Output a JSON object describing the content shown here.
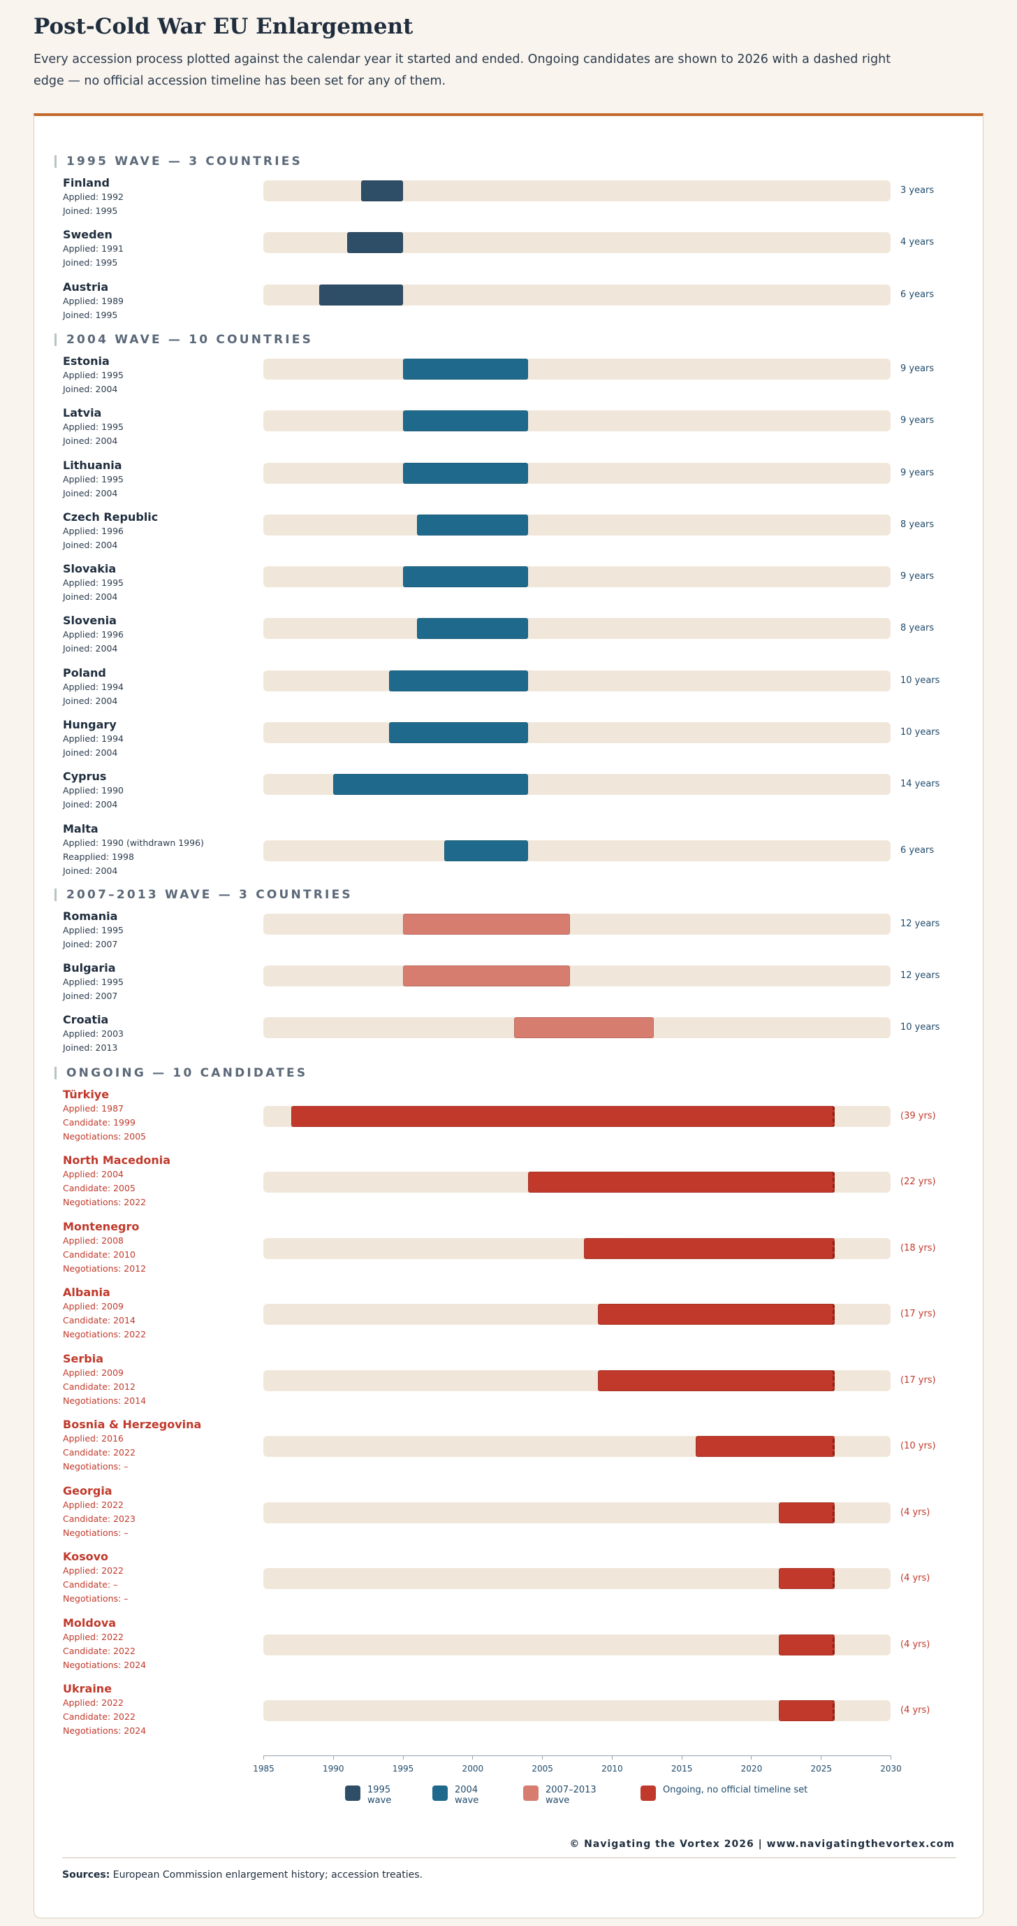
{
  "header": {
    "title": "Post-Cold War EU Enlargement",
    "subtitle": "Every accession process plotted against the calendar year it started and ended. Ongoing candidates are shown to 2026 with a dashed right edge — no official accession timeline has been set for any of them."
  },
  "colors": {
    "wave1995": "#2e4d66",
    "wave2004": "#1f6a8c",
    "wave2007": "#d67d70",
    "ongoing": "#c0392b",
    "track": "#f0e7da",
    "accent_rule": "#c26a2b"
  },
  "chart_data": {
    "type": "bar",
    "xlim": [
      1985,
      2030
    ],
    "x_ticks": [
      "1985",
      "1990",
      "1995",
      "2000",
      "2005",
      "2010",
      "2015",
      "2020",
      "2025",
      "2030"
    ],
    "groups": [
      {
        "heading": "1995 WAVE — 3 COUNTRIES",
        "key": "wave1995",
        "items": [
          {
            "name": "Finland",
            "start": 1992,
            "end": 1995,
            "details": [
              "Applied: 1992",
              "Joined: 1995"
            ],
            "duration": "3 years"
          },
          {
            "name": "Sweden",
            "start": 1991,
            "end": 1995,
            "details": [
              "Applied: 1991",
              "Joined: 1995"
            ],
            "duration": "4 years"
          },
          {
            "name": "Austria",
            "start": 1989,
            "end": 1995,
            "details": [
              "Applied: 1989",
              "Joined: 1995"
            ],
            "duration": "6 years"
          }
        ]
      },
      {
        "heading": "2004 WAVE — 10 COUNTRIES",
        "key": "wave2004",
        "items": [
          {
            "name": "Estonia",
            "start": 1995,
            "end": 2004,
            "details": [
              "Applied: 1995",
              "Joined: 2004"
            ],
            "duration": "9 years"
          },
          {
            "name": "Latvia",
            "start": 1995,
            "end": 2004,
            "details": [
              "Applied: 1995",
              "Joined: 2004"
            ],
            "duration": "9 years"
          },
          {
            "name": "Lithuania",
            "start": 1995,
            "end": 2004,
            "details": [
              "Applied: 1995",
              "Joined: 2004"
            ],
            "duration": "9 years"
          },
          {
            "name": "Czech Republic",
            "start": 1996,
            "end": 2004,
            "details": [
              "Applied: 1996",
              "Joined: 2004"
            ],
            "duration": "8 years"
          },
          {
            "name": "Slovakia",
            "start": 1995,
            "end": 2004,
            "details": [
              "Applied: 1995",
              "Joined: 2004"
            ],
            "duration": "9 years"
          },
          {
            "name": "Slovenia",
            "start": 1996,
            "end": 2004,
            "details": [
              "Applied: 1996",
              "Joined: 2004"
            ],
            "duration": "8 years"
          },
          {
            "name": "Poland",
            "start": 1994,
            "end": 2004,
            "details": [
              "Applied: 1994",
              "Joined: 2004"
            ],
            "duration": "10 years"
          },
          {
            "name": "Hungary",
            "start": 1994,
            "end": 2004,
            "details": [
              "Applied: 1994",
              "Joined: 2004"
            ],
            "duration": "10 years"
          },
          {
            "name": "Cyprus",
            "start": 1990,
            "end": 2004,
            "details": [
              "Applied: 1990",
              "Joined: 2004"
            ],
            "duration": "14 years"
          },
          {
            "name": "Malta",
            "start": 1998,
            "end": 2004,
            "details": [
              "Applied: 1990 (withdrawn 1996)",
              "Reapplied: 1998",
              "Joined: 2004"
            ],
            "duration": "6 years"
          }
        ]
      },
      {
        "heading": "2007–2013 WAVE — 3 COUNTRIES",
        "key": "wave2007",
        "items": [
          {
            "name": "Romania",
            "start": 1995,
            "end": 2007,
            "details": [
              "Applied: 1995",
              "Joined: 2007"
            ],
            "duration": "12 years"
          },
          {
            "name": "Bulgaria",
            "start": 1995,
            "end": 2007,
            "details": [
              "Applied: 1995",
              "Joined: 2007"
            ],
            "duration": "12 years"
          },
          {
            "name": "Croatia",
            "start": 2003,
            "end": 2013,
            "details": [
              "Applied: 2003",
              "Joined: 2013"
            ],
            "duration": "10 years"
          }
        ]
      },
      {
        "heading": "ONGOING — 10 CANDIDATES",
        "key": "ongoing",
        "items": [
          {
            "name": "Türkiye",
            "start": 1987,
            "end": 2026,
            "details": [
              "Applied: 1987",
              "Candidate: 1999",
              "Negotiations: 2005"
            ],
            "duration": "(39 yrs)"
          },
          {
            "name": "North Macedonia",
            "start": 2004,
            "end": 2026,
            "details": [
              "Applied: 2004",
              "Candidate: 2005",
              "Negotiations: 2022"
            ],
            "duration": "(22 yrs)"
          },
          {
            "name": "Montenegro",
            "start": 2008,
            "end": 2026,
            "details": [
              "Applied: 2008",
              "Candidate: 2010",
              "Negotiations: 2012"
            ],
            "duration": "(18 yrs)"
          },
          {
            "name": "Albania",
            "start": 2009,
            "end": 2026,
            "details": [
              "Applied: 2009",
              "Candidate: 2014",
              "Negotiations: 2022"
            ],
            "duration": "(17 yrs)"
          },
          {
            "name": "Serbia",
            "start": 2009,
            "end": 2026,
            "details": [
              "Applied: 2009",
              "Candidate: 2012",
              "Negotiations: 2014"
            ],
            "duration": "(17 yrs)"
          },
          {
            "name": "Bosnia & Herzegovina",
            "start": 2016,
            "end": 2026,
            "details": [
              "Applied: 2016",
              "Candidate: 2022",
              "Negotiations: –"
            ],
            "duration": "(10 yrs)"
          },
          {
            "name": "Georgia",
            "start": 2022,
            "end": 2026,
            "details": [
              "Applied: 2022",
              "Candidate: 2023",
              "Negotiations: –"
            ],
            "duration": "(4 yrs)"
          },
          {
            "name": "Kosovo",
            "start": 2022,
            "end": 2026,
            "details": [
              "Applied: 2022",
              "Candidate: –",
              "Negotiations: –"
            ],
            "duration": "(4 yrs)"
          },
          {
            "name": "Moldova",
            "start": 2022,
            "end": 2026,
            "details": [
              "Applied: 2022",
              "Candidate: 2022",
              "Negotiations: 2024"
            ],
            "duration": "(4 yrs)"
          },
          {
            "name": "Ukraine",
            "start": 2022,
            "end": 2026,
            "details": [
              "Applied: 2022",
              "Candidate: 2022",
              "Negotiations: 2024"
            ],
            "duration": "(4 yrs)"
          }
        ]
      }
    ],
    "legend": [
      {
        "label": "1995 wave",
        "key": "wave1995"
      },
      {
        "label": "2004 wave",
        "key": "wave2004"
      },
      {
        "label": "2007–2013 wave",
        "key": "wave2007"
      },
      {
        "label": "Ongoing, no official timeline set",
        "key": "ongoing"
      }
    ]
  },
  "footer": {
    "credit": "© Navigating the Vortex 2026 | www.navigatingthevortex.com",
    "sources_label": "Sources:",
    "sources_text": " European Commission enlargement history; accession treaties."
  }
}
